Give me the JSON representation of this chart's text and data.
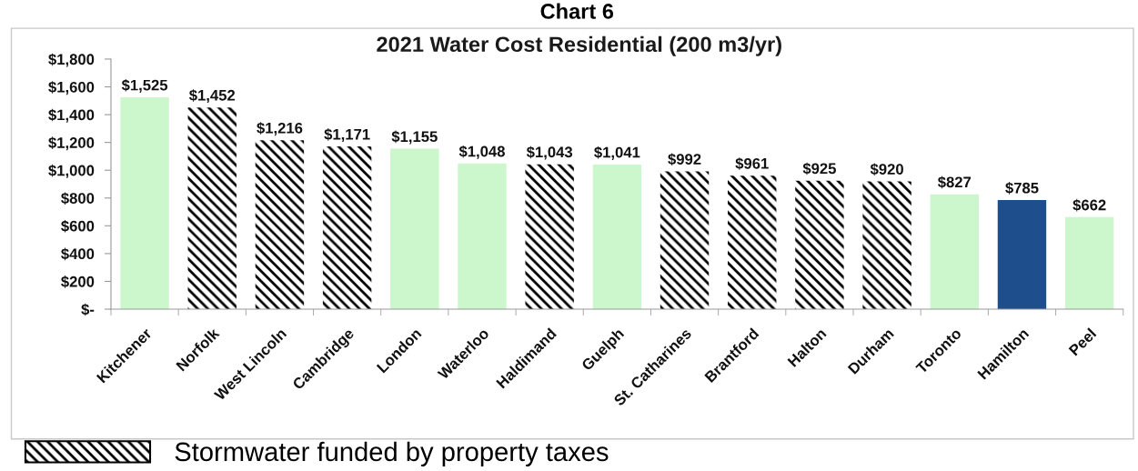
{
  "chart_data": {
    "type": "bar",
    "title": "Chart 6",
    "subtitle": "2021 Water Cost Residential (200 m3/yr)",
    "categories": [
      "Kitchener",
      "Norfolk",
      "West Lincoln",
      "Cambridge",
      "London",
      "Waterloo",
      "Haldimand",
      "Guelph",
      "St. Catharines",
      "Brantford",
      "Halton",
      "Durham",
      "Toronto",
      "Hamilton",
      "Peel"
    ],
    "stacked": true,
    "series": [
      {
        "name": "Stormwater funded by property taxes",
        "color": "#000000",
        "values": [
          null,
          1452,
          1216,
          1171,
          null,
          null,
          1043,
          null,
          992,
          961,
          925,
          920,
          null,
          null,
          null
        ],
        "value_labels": [
          null,
          "$1,452",
          "$1,216",
          "$1,171",
          null,
          null,
          "$1,043",
          null,
          "$992",
          "$961",
          "$925",
          "$920",
          null,
          null,
          null
        ]
      },
      {
        "colors": [
          "#ccf6cc",
          null,
          null,
          null,
          "#ccf6cc",
          "#ccf6cc",
          null,
          "#ccf6cc",
          null,
          null,
          null,
          null,
          "#ccf6cc",
          "#1f4e8c",
          "#ccf6cc"
        ],
        "values": [
          1525,
          null,
          null,
          null,
          1155,
          1048,
          null,
          1041,
          null,
          null,
          null,
          null,
          827,
          785,
          662
        ],
        "value_labels": [
          "$1,525",
          null,
          null,
          null,
          "$1,155",
          "$1,048",
          null,
          "$1,041",
          null,
          null,
          null,
          null,
          "$827",
          "$785",
          "$662"
        ]
      }
    ],
    "ylim": [
      0,
      1800
    ],
    "yticks": [
      {
        "value": 0,
        "label": "$-"
      },
      {
        "value": 200,
        "label": "$200"
      },
      {
        "value": 400,
        "label": "$400"
      },
      {
        "value": 600,
        "label": "$600"
      },
      {
        "value": 800,
        "label": "$800"
      },
      {
        "value": 1000,
        "label": "$1,000"
      },
      {
        "value": 1200,
        "label": "$1,200"
      },
      {
        "value": 1400,
        "label": "$1,400"
      },
      {
        "value": 1600,
        "label": "$1,600"
      },
      {
        "value": 1800,
        "label": "$1,800"
      }
    ],
    "legend": "bottom left"
  }
}
